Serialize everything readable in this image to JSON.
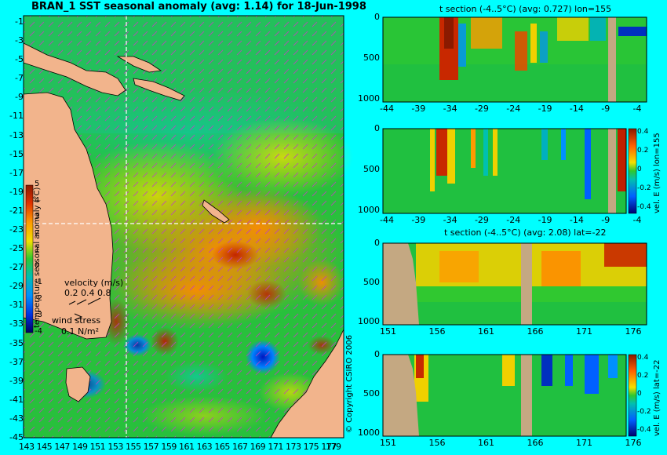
{
  "chart_data": [
    {
      "type": "heatmap",
      "title": "BRAN_1 SST seasonal anomaly (avg: 1.14) for 18-Jun-1998",
      "x_ticks": [
        "143",
        "145",
        "147",
        "149",
        "151",
        "153",
        "155",
        "157",
        "159",
        "161",
        "163",
        "165",
        "167",
        "169",
        "171",
        "173",
        "175",
        "177",
        "179"
      ],
      "y_ticks": [
        "-1",
        "-3",
        "-5",
        "-7",
        "-9",
        "-11",
        "-13",
        "-15",
        "-17",
        "-19",
        "-21",
        "-23",
        "-25",
        "-27",
        "-29",
        "-31",
        "-33",
        "-35",
        "-37",
        "-39",
        "-41",
        "-43",
        "-45"
      ],
      "colorbar": {
        "ticks": [
          "5",
          "4",
          "3",
          "2",
          "1",
          "0",
          "-1",
          "-2",
          "-3",
          "-4"
        ],
        "label": "temperature seasonal anomaly (°C)",
        "range": [
          -4,
          5
        ]
      },
      "legend": {
        "velocity_label": "velocity (m/s)",
        "velocity_scale": "0.2 0.4 0.8",
        "wind_label": "wind stress",
        "wind_scale": "0.1 N/m²"
      },
      "grid": false,
      "section_lines": {
        "lon": 155,
        "lat": -22
      }
    },
    {
      "type": "heatmap",
      "title": "t section (-4..5°C) (avg: 0.727) lon=155",
      "x_ticks": [
        "-44",
        "-39",
        "-34",
        "-29",
        "-24",
        "-19",
        "-14",
        "-9",
        "-4"
      ],
      "y_ticks": [
        "0",
        "500",
        "1000"
      ]
    },
    {
      "type": "heatmap",
      "title": "",
      "x_ticks": [
        "-44",
        "-39",
        "-34",
        "-29",
        "-24",
        "-19",
        "-14",
        "-9",
        "-4"
      ],
      "y_ticks": [
        "0",
        "500",
        "1000"
      ],
      "colorbar": {
        "label": "vel. E (m/s) lon=155",
        "ticks": [
          "0.4",
          "0.2",
          "0",
          "-0.2",
          "-0.4"
        ]
      }
    },
    {
      "type": "heatmap",
      "title": "t section (-4..5°C) (avg: 2.08) lat=-22",
      "x_ticks": [
        "151",
        "156",
        "161",
        "166",
        "171",
        "176"
      ],
      "y_ticks": [
        "0",
        "500",
        "1000"
      ]
    },
    {
      "type": "heatmap",
      "title": "",
      "x_ticks": [
        "151",
        "156",
        "161",
        "166",
        "171",
        "176"
      ],
      "y_ticks": [
        "0",
        "500",
        "1000"
      ],
      "colorbar": {
        "label": "vel. E (m/s) lat=-22",
        "ticks": [
          "0.4",
          "0.2",
          "0",
          "-0.2",
          "-0.4"
        ]
      }
    }
  ],
  "copyright": "© Copyright CSIRO 2006",
  "colors": {
    "background": "#00ffff",
    "land": "#f2b48c",
    "section_land": "#c4a882",
    "ocean_base": "#22c040"
  }
}
